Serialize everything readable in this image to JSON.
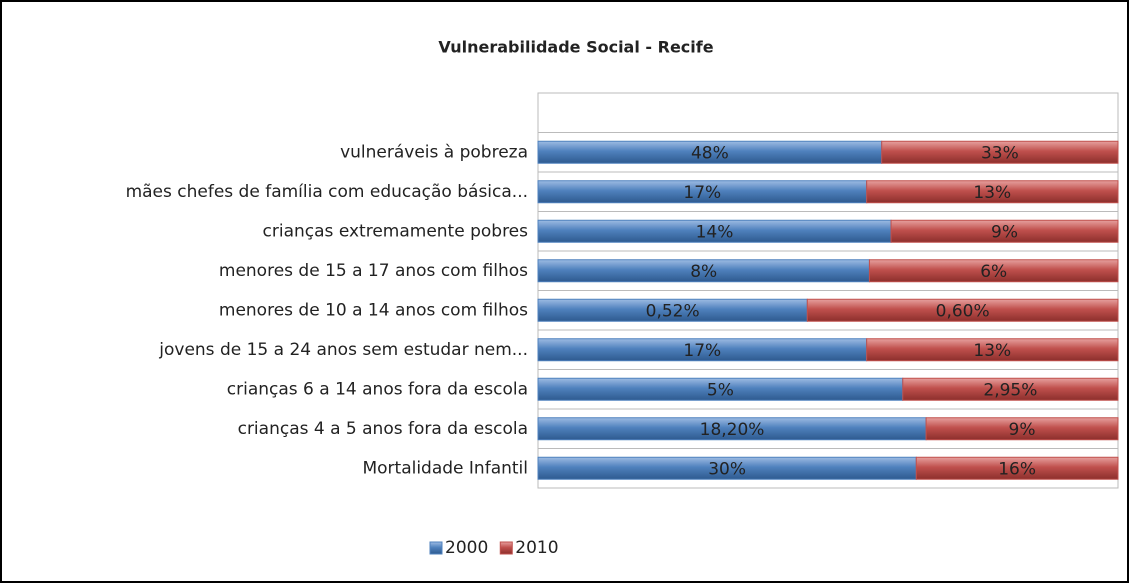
{
  "chart_data": {
    "type": "bar",
    "orientation": "horizontal",
    "stack": "percent",
    "title": "Vulnerabilidade Social - Recife",
    "categories": [
      "vulneráveis à pobreza",
      "mães chefes de família com educação básica...",
      "crianças extremamente pobres",
      "menores de 15 a 17 anos com filhos",
      "menores de 10 a 14 anos com filhos",
      "jovens de 15 a 24 anos sem estudar nem...",
      "crianças 6 a 14 anos fora da escola",
      "crianças 4 a 5 anos fora da escola",
      "Mortalidade Infantil"
    ],
    "series": [
      {
        "name": "2000",
        "color": "#4f81bd",
        "values": [
          48,
          17,
          14,
          8,
          0.52,
          17,
          5,
          18.2,
          30
        ],
        "value_labels": [
          "48%",
          "17%",
          "14%",
          "8%",
          "0,52%",
          "17%",
          "5%",
          "18,20%",
          "30%"
        ]
      },
      {
        "name": "2010",
        "color": "#c0504d",
        "values": [
          33,
          13,
          9,
          6,
          0.6,
          13,
          2.95,
          9,
          16
        ],
        "value_labels": [
          "33%",
          "13%",
          "9%",
          "6%",
          "0,60%",
          "13%",
          "2,95%",
          "9%",
          "16%"
        ]
      }
    ],
    "legend": "bottom",
    "grid": true
  }
}
